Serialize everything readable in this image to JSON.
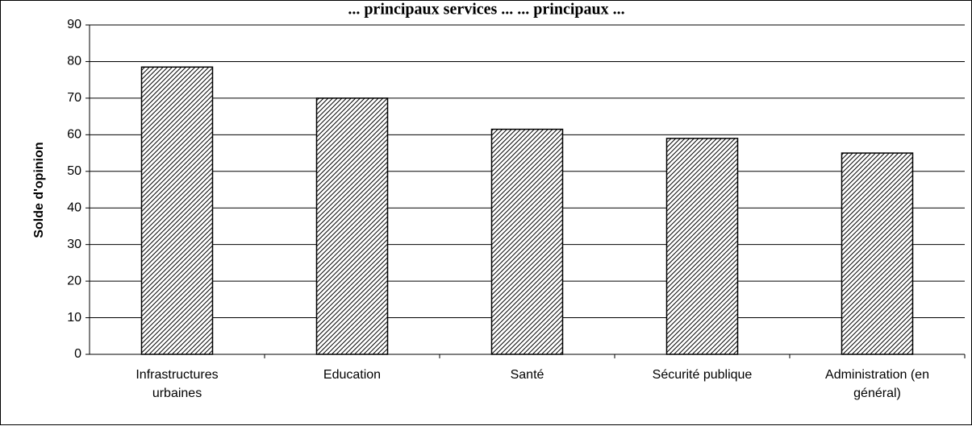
{
  "chart_data": {
    "type": "bar",
    "title": "... principaux services ... ... principaux ...",
    "xlabel": "",
    "ylabel": "Solde d'opinion",
    "ylim": [
      0,
      90
    ],
    "yticks": [
      0,
      10,
      20,
      30,
      40,
      50,
      60,
      70,
      80,
      90
    ],
    "grid": true,
    "legend": "none",
    "categories": [
      [
        "Infrastructures",
        "urbaines"
      ],
      [
        "Education"
      ],
      [
        "Santé"
      ],
      [
        "Sécurité publique"
      ],
      [
        "Administration (en",
        "général)"
      ]
    ],
    "series": [
      {
        "values": [
          78.5,
          70,
          61.5,
          59,
          55
        ]
      }
    ],
    "colors": {
      "bar_fill": "#ffffff",
      "bar_hatch": "#000000",
      "gridline": "#000000",
      "axis": "#000000"
    }
  }
}
